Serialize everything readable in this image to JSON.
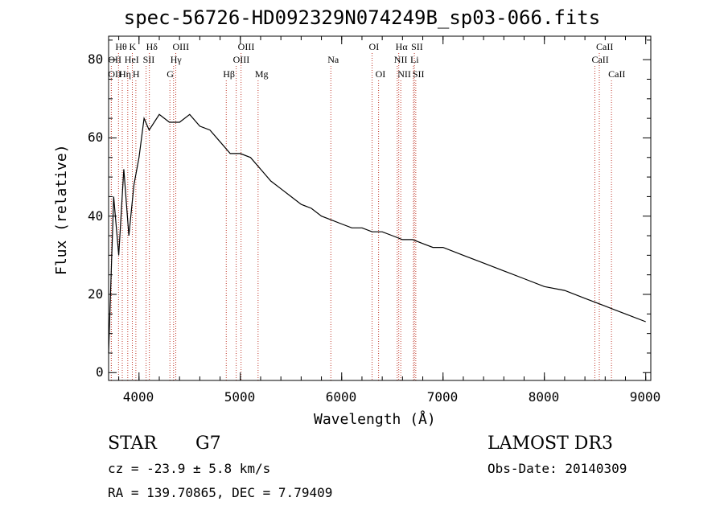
{
  "chart_data": {
    "type": "line",
    "title": "spec-56726-HD092329N074249B_sp03-066.fits",
    "xlabel": "Wavelength (Å)",
    "ylabel": "Flux (relative)",
    "xlim": [
      3700,
      9050
    ],
    "ylim": [
      -2,
      86
    ],
    "xticks": [
      4000,
      5000,
      6000,
      7000,
      8000,
      9000
    ],
    "yticks": [
      0,
      20,
      40,
      60,
      80
    ],
    "series": [
      {
        "name": "spectrum",
        "x": [
          3700,
          3750,
          3800,
          3850,
          3900,
          3950,
          4000,
          4050,
          4100,
          4200,
          4300,
          4400,
          4500,
          4600,
          4700,
          4800,
          4900,
          5000,
          5100,
          5200,
          5300,
          5400,
          5500,
          5600,
          5700,
          5800,
          5900,
          6000,
          6100,
          6200,
          6300,
          6400,
          6500,
          6600,
          6700,
          6800,
          6900,
          7000,
          7200,
          7400,
          7600,
          7800,
          8000,
          8200,
          8400,
          8600,
          8800,
          9000
        ],
        "y": [
          5,
          45,
          30,
          52,
          35,
          48,
          55,
          65,
          62,
          66,
          64,
          64,
          66,
          63,
          62,
          59,
          56,
          56,
          55,
          52,
          49,
          47,
          45,
          43,
          42,
          40,
          39,
          38,
          37,
          37,
          36,
          36,
          35,
          34,
          34,
          33,
          32,
          32,
          30,
          28,
          26,
          24,
          22,
          21,
          19,
          17,
          15,
          13
        ]
      }
    ],
    "emission_lines": [
      {
        "label": "Hθ",
        "x": 3798,
        "row": 0
      },
      {
        "label": "K",
        "x": 3934,
        "row": 0
      },
      {
        "label": "Hδ",
        "x": 4102,
        "row": 0
      },
      {
        "label": "OIII",
        "x": 4363,
        "row": 0
      },
      {
        "label": "OIII",
        "x": 5007,
        "row": 0
      },
      {
        "label": "OI",
        "x": 6300,
        "row": 0
      },
      {
        "label": "Hα",
        "x": 6563,
        "row": 0
      },
      {
        "label": "SII",
        "x": 6717,
        "row": 0
      },
      {
        "label": "CaII",
        "x": 8542,
        "row": 0
      },
      {
        "label": "OII",
        "x": 3727,
        "row": 1
      },
      {
        "label": "HeI",
        "x": 3889,
        "row": 1
      },
      {
        "label": "SII",
        "x": 4070,
        "row": 1
      },
      {
        "label": "Hγ",
        "x": 4341,
        "row": 1
      },
      {
        "label": "OIII",
        "x": 4959,
        "row": 1
      },
      {
        "label": "Na",
        "x": 5893,
        "row": 1
      },
      {
        "label": "NII",
        "x": 6548,
        "row": 1
      },
      {
        "label": "Li",
        "x": 6708,
        "row": 1
      },
      {
        "label": "CaII",
        "x": 8498,
        "row": 1
      },
      {
        "label": "OII",
        "x": 3727,
        "row": 2
      },
      {
        "label": "Hη",
        "x": 3835,
        "row": 2
      },
      {
        "label": "H",
        "x": 3969,
        "row": 2
      },
      {
        "label": "G",
        "x": 4305,
        "row": 2
      },
      {
        "label": "Hβ",
        "x": 4861,
        "row": 2
      },
      {
        "label": "Mg",
        "x": 5175,
        "row": 2
      },
      {
        "label": "OI",
        "x": 6364,
        "row": 2
      },
      {
        "label": "NII",
        "x": 6583,
        "row": 2
      },
      {
        "label": "SII",
        "x": 6731,
        "row": 2
      },
      {
        "label": "CaII",
        "x": 8662,
        "row": 2
      }
    ],
    "line_color": "#000000",
    "marker_color": "#c0392b"
  },
  "info": {
    "object_class": "STAR",
    "subclass": "G7",
    "survey": "LAMOST DR3",
    "cz": "cz = -23.9 ± 5.8 km/s",
    "obs_date": "Obs-Date: 20140309",
    "coords": "RA = 139.70865, DEC =   7.79409"
  }
}
